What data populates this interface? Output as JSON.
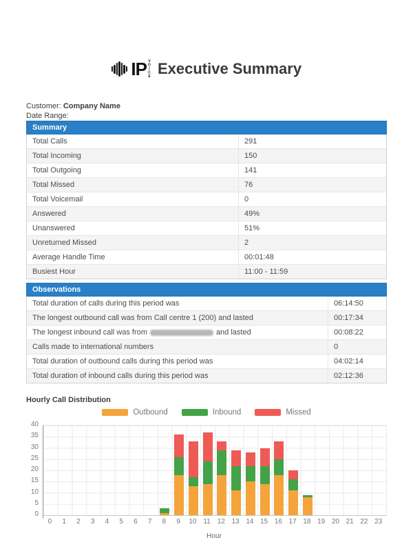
{
  "header": {
    "logo_ip": "IP",
    "logo_voice": "VOICE",
    "title": "Executive Summary"
  },
  "info": {
    "customer_label": "Customer:",
    "customer_value": "Company Name",
    "date_range_label": "Date Range:",
    "date_range_value": ""
  },
  "summary_table": {
    "title": "Summary",
    "rows": [
      {
        "label": "Total Calls",
        "value": "291"
      },
      {
        "label": "Total Incoming",
        "value": "150"
      },
      {
        "label": "Total Outgoing",
        "value": "141"
      },
      {
        "label": "Total Missed",
        "value": "76"
      },
      {
        "label": "Total Voicemail",
        "value": "0"
      },
      {
        "label": "Answered",
        "value": "49%"
      },
      {
        "label": "Unanswered",
        "value": "51%"
      },
      {
        "label": "Unreturned Missed",
        "value": "2"
      },
      {
        "label": "Average Handle Time",
        "value": "00:01:48"
      },
      {
        "label": "Busiest Hour",
        "value": "11:00 - 11:59"
      }
    ]
  },
  "observations_table": {
    "title": "Observations",
    "rows": [
      {
        "text": "Total duration of calls during this period was",
        "value": "06:14:50"
      },
      {
        "text": "The longest outbound call was from Call centre 1 (200) and lasted",
        "value": "00:17:34"
      },
      {
        "text_prefix": "The longest inbound call was from",
        "redacted": true,
        "text_suffix": "and lasted",
        "value": "00:08:22"
      },
      {
        "text": "Calls made to international numbers",
        "value": "0"
      },
      {
        "text": "Total duration of outbound calls during this period was",
        "value": "04:02:14"
      },
      {
        "text": "Total duration of inbound calls during this period was",
        "value": "02:12:36"
      }
    ]
  },
  "chart_data": {
    "type": "bar",
    "stacked": true,
    "title": "Hourly Call Distribution",
    "xlabel": "Hour",
    "ylabel": "",
    "ylim": [
      0,
      40
    ],
    "ytick_step": 5,
    "grid": true,
    "legend_position": "top",
    "categories": [
      "0",
      "1",
      "2",
      "3",
      "4",
      "5",
      "6",
      "7",
      "8",
      "9",
      "10",
      "11",
      "12",
      "13",
      "14",
      "15",
      "16",
      "17",
      "18",
      "19",
      "20",
      "21",
      "22",
      "23"
    ],
    "series": [
      {
        "name": "Outbound",
        "color": "#F4A43B",
        "values": [
          0,
          0,
          0,
          0,
          0,
          0,
          0,
          0,
          1,
          18,
          13,
          14,
          18,
          11,
          15,
          14,
          18,
          11,
          8,
          0,
          0,
          0,
          0,
          0
        ]
      },
      {
        "name": "Inbound",
        "color": "#44A248",
        "values": [
          0,
          0,
          0,
          0,
          0,
          0,
          0,
          0,
          2,
          8,
          4,
          10,
          11,
          11,
          7,
          8,
          7,
          5,
          1,
          0,
          0,
          0,
          0,
          0
        ]
      },
      {
        "name": "Missed",
        "color": "#EE5A55",
        "values": [
          0,
          0,
          0,
          0,
          0,
          0,
          0,
          0,
          0,
          10,
          16,
          13,
          4,
          7,
          6,
          8,
          8,
          4,
          0,
          0,
          0,
          0,
          0,
          0
        ]
      }
    ]
  },
  "colors": {
    "table_header_blue": "#2980C6",
    "outbound_orange": "#F4A43B",
    "inbound_green": "#44A248",
    "missed_red": "#EE5A55"
  }
}
